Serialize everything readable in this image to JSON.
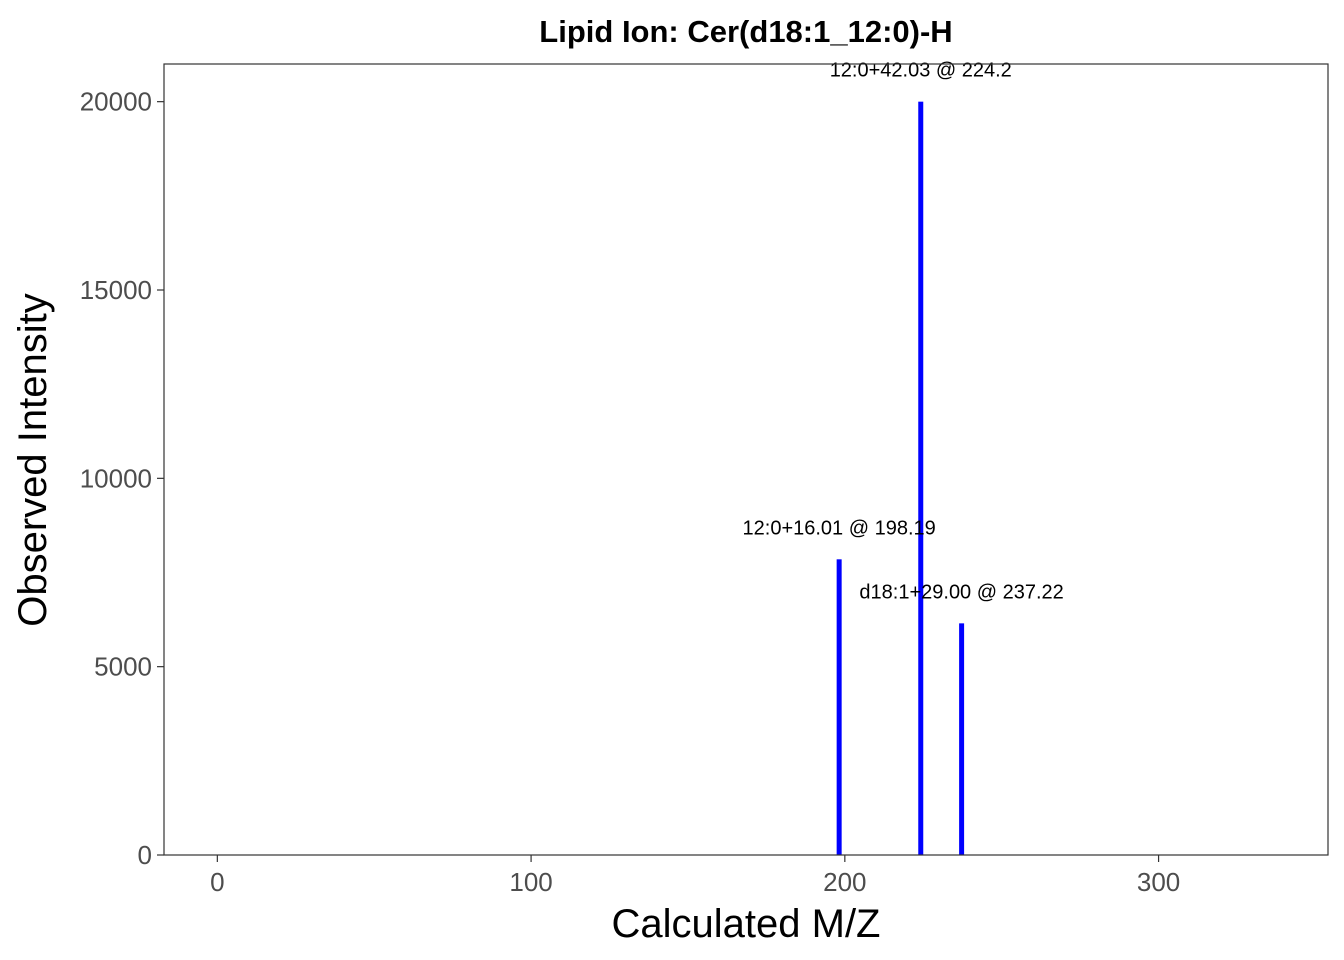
{
  "chart_data": {
    "type": "bar",
    "title": "Lipid Ion: Cer(d18:1_12:0)-H",
    "xlabel": "Calculated M/Z",
    "ylabel": "Observed Intensity",
    "xlim": [
      -17,
      354
    ],
    "ylim": [
      0,
      21000
    ],
    "x_ticks": [
      0,
      100,
      200,
      300
    ],
    "y_ticks": [
      0,
      5000,
      10000,
      15000,
      20000
    ],
    "bar_color": "#0000ff",
    "grid": false,
    "legend": "none",
    "peaks": [
      {
        "mz": 198.19,
        "intensity": 7850,
        "label": "12:0+16.01 @ 198.19"
      },
      {
        "mz": 224.2,
        "intensity": 20000,
        "label": "12:0+42.03 @ 224.2"
      },
      {
        "mz": 237.22,
        "intensity": 6150,
        "label": "d18:1+29.00 @ 237.22"
      }
    ]
  }
}
